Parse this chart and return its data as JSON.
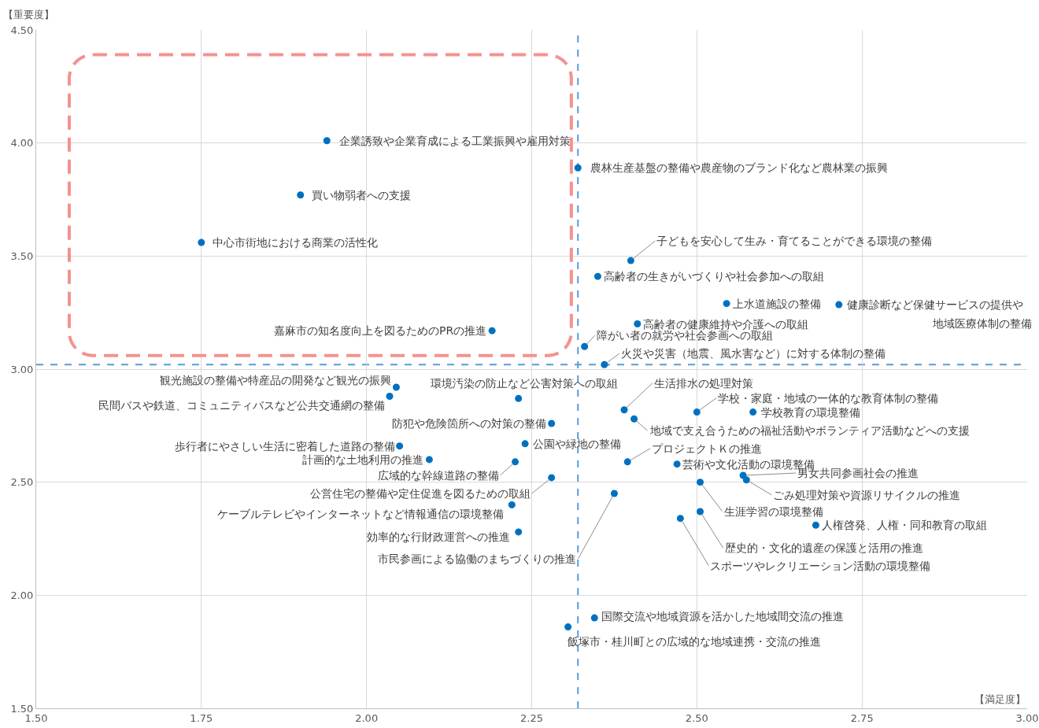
{
  "chart_data": {
    "type": "scatter",
    "xlabel": "【満足度】",
    "ylabel": "【重要度】",
    "xlim": [
      1.5,
      3.0
    ],
    "ylim": [
      1.5,
      4.5
    ],
    "xticks": [
      {
        "value": 1.5,
        "label": "1.50"
      },
      {
        "value": 1.75,
        "label": "1.75"
      },
      {
        "value": 2.0,
        "label": "2.00"
      },
      {
        "value": 2.25,
        "label": "2.25"
      },
      {
        "value": 2.5,
        "label": "2.50"
      },
      {
        "value": 2.75,
        "label": "2.75"
      },
      {
        "value": 3.0,
        "label": "3.00"
      }
    ],
    "yticks": [
      {
        "value": 1.5,
        "label": "1.50"
      },
      {
        "value": 2.0,
        "label": "2.00"
      },
      {
        "value": 2.5,
        "label": "2.50"
      },
      {
        "value": 3.0,
        "label": "3.00"
      },
      {
        "value": 3.5,
        "label": "3.50"
      },
      {
        "value": 4.0,
        "label": "4.00"
      },
      {
        "value": 4.5,
        "label": "4.50"
      }
    ],
    "grid": true,
    "marker": "circle",
    "x": [
      1.94,
      2.32,
      1.9,
      1.75,
      2.4,
      2.35,
      2.545,
      2.715,
      2.41,
      2.19,
      2.33,
      2.36,
      2.045,
      2.035,
      2.23,
      2.28,
      2.39,
      2.405,
      2.5,
      2.585,
      2.05,
      2.24,
      2.095,
      2.225,
      2.395,
      2.47,
      2.57,
      2.575,
      2.28,
      2.505,
      2.375,
      2.22,
      2.505,
      2.475,
      2.68,
      2.23,
      2.345,
      2.305
    ],
    "series": [
      {
        "color": "#0070c0",
        "values": [
          4.01,
          3.89,
          3.77,
          3.56,
          3.48,
          3.41,
          3.29,
          3.285,
          3.2,
          3.17,
          3.1,
          3.02,
          2.92,
          2.88,
          2.87,
          2.76,
          2.82,
          2.78,
          2.81,
          2.81,
          2.66,
          2.67,
          2.6,
          2.59,
          2.59,
          2.58,
          2.53,
          2.51,
          2.52,
          2.5,
          2.45,
          2.4,
          2.37,
          2.34,
          2.31,
          2.28,
          1.9,
          1.86
        ]
      }
    ],
    "ref_lines": [
      {
        "axis": "x",
        "value": 2.32,
        "color": "#5b9bd5",
        "line_style": "dashed"
      },
      {
        "axis": "y",
        "value": 3.02,
        "color": "#5b9bd5",
        "line_style": "dashed"
      }
    ],
    "annotations": [
      {
        "text": "企業誘致や企業育成による工業振興や雇用対策",
        "x": 1.94,
        "y": 4.01
      },
      {
        "text": "農林生産基盤の整備や農産物のブランド化など農林業の振興",
        "x": 2.32,
        "y": 3.89
      },
      {
        "text": "買い物弱者への支援",
        "x": 1.9,
        "y": 3.77
      },
      {
        "text": "中心市街地における商業の活性化",
        "x": 1.75,
        "y": 3.56
      },
      {
        "text": "子どもを安心して生み・育てることができる環境の整備",
        "x": 2.4,
        "y": 3.48
      },
      {
        "text": "高齢者の生きがいづくりや社会参加への取組",
        "x": 2.35,
        "y": 3.41
      },
      {
        "text": "上水道施設の整備",
        "x": 2.545,
        "y": 3.29
      },
      {
        "text": "健康診断など保健サービスの提供や",
        "x": 2.715,
        "y": 3.285
      },
      "地域医療体制の整備",
      {
        "text": "高齢者の健康維持や介護への取組",
        "x": 2.41,
        "y": 3.2
      },
      {
        "text": "嘉麻市の知名度向上を図るためのPRの推進",
        "x": 2.19,
        "y": 3.17
      },
      {
        "text": "障がい者の就労や社会参画への取組",
        "x": 2.33,
        "y": 3.1
      },
      {
        "text": "火災や災害（地震、風水害など）に対する体制の整備",
        "x": 2.36,
        "y": 3.02
      },
      {
        "text": "観光施設の整備や特産品の開発など観光の振興",
        "x": 2.045,
        "y": 2.92
      },
      {
        "text": "民間バスや鉄道、コミュニティバスなど公共交通網の整備",
        "x": 2.035,
        "y": 2.88
      },
      {
        "text": "環境汚染の防止など公害対策への取組",
        "x": 2.23,
        "y": 2.87
      },
      {
        "text": "防犯や危険箇所への対策の整備",
        "x": 2.28,
        "y": 2.76
      },
      {
        "text": "生活排水の処理対策",
        "x": 2.39,
        "y": 2.82
      },
      {
        "text": "地域で支え合うための福祉活動やボランティア活動などへの支援",
        "x": 2.405,
        "y": 2.78
      },
      {
        "text": "学校・家庭・地域の一体的な教育体制の整備",
        "x": 2.5,
        "y": 2.81
      },
      {
        "text": "学校教育の環境整備",
        "x": 2.585,
        "y": 2.81
      },
      {
        "text": "歩行者にやさしい生活に密着した道路の整備",
        "x": 2.05,
        "y": 2.66
      },
      {
        "text": "公園や緑地の整備",
        "x": 2.24,
        "y": 2.67
      },
      {
        "text": "計画的な土地利用の推進",
        "x": 2.095,
        "y": 2.6
      },
      {
        "text": "広域的な幹線道路の整備",
        "x": 2.225,
        "y": 2.59
      },
      {
        "text": "プロジェクトＫの推進",
        "x": 2.395,
        "y": 2.59
      },
      {
        "text": "芸術や文化活動の環境整備",
        "x": 2.47,
        "y": 2.58
      },
      {
        "text": "男女共同参画社会の推進",
        "x": 2.57,
        "y": 2.53
      },
      {
        "text": "ごみ処理対策や資源リサイクルの推進",
        "x": 2.575,
        "y": 2.51
      },
      {
        "text": "公営住宅の整備や定住促進を図るための取組",
        "x": 2.28,
        "y": 2.52
      },
      {
        "text": "生涯学習の環境整備",
        "x": 2.505,
        "y": 2.5
      },
      {
        "text": "市民参画による協働のまちづくりの推進",
        "x": 2.375,
        "y": 2.45
      },
      {
        "text": "ケーブルテレビやインターネットなど情報通信の環境整備",
        "x": 2.22,
        "y": 2.4
      },
      {
        "text": "歴史的・文化的遺産の保護と活用の推進",
        "x": 2.505,
        "y": 2.37
      },
      {
        "text": "スポーツやレクリエーション活動の環境整備",
        "x": 2.475,
        "y": 2.34
      },
      {
        "text": "人権啓発、人権・同和教育の取組",
        "x": 2.68,
        "y": 2.31
      },
      {
        "text": "効率的な行財政運営への推進",
        "x": 2.23,
        "y": 2.28
      },
      {
        "text": "国際交流や地域資源を活かした地域間交流の推進",
        "x": 2.345,
        "y": 1.9
      },
      {
        "text": "飯塚市・桂川町との広域的な地域連携・交流の推進",
        "x": 2.305,
        "y": 1.86
      }
    ]
  }
}
